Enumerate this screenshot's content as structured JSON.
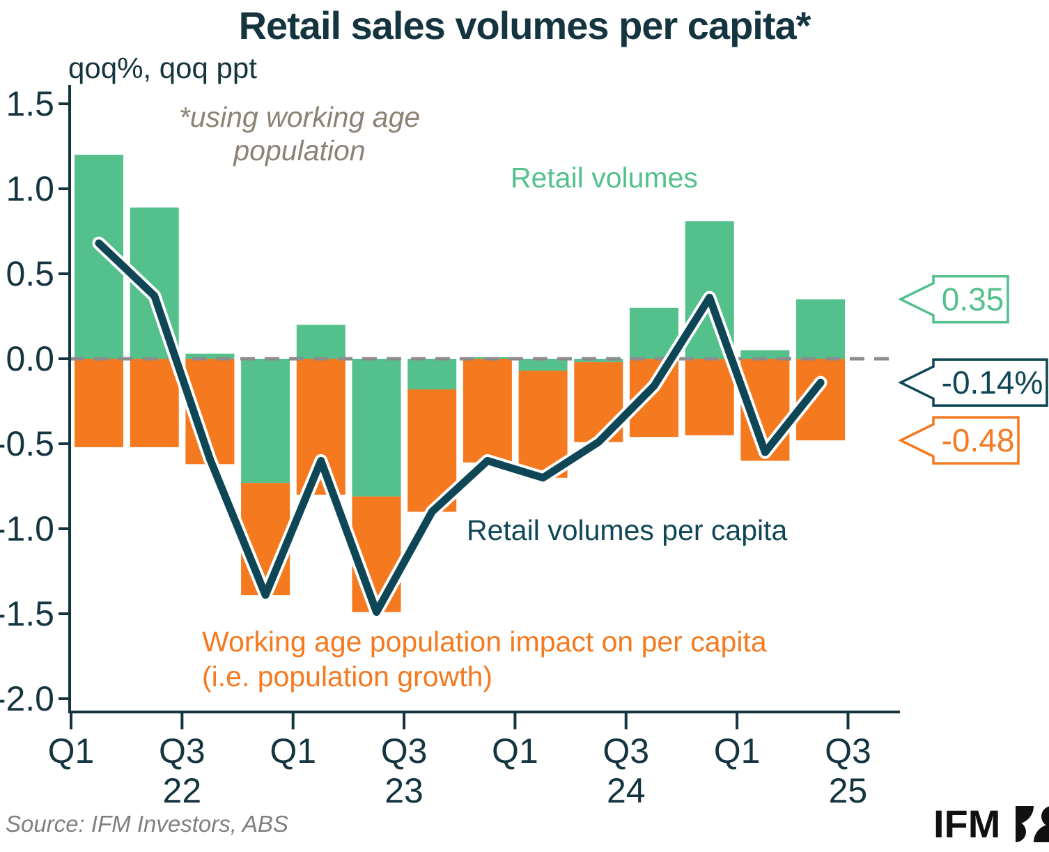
{
  "title": "Retail sales volumes per capita*",
  "axis_units_label": "qoq%, qoq ppt",
  "footnote": {
    "line1": "*using working age",
    "line2": "population"
  },
  "labels": {
    "retail_volumes": "Retail volumes",
    "retail_volumes_per_capita": "Retail volumes per capita",
    "population_impact_line1": "Working age population impact on per capita",
    "population_impact_line2": "(i.e. population growth)"
  },
  "source": "Source: IFM Investors, ABS",
  "logo": {
    "text": "IFM",
    "mark": "ifm-pinwheel-mark"
  },
  "colors": {
    "green": "#54C08C",
    "orange": "#F4791F",
    "teal": "#0E4656",
    "text_dark": "#14343F",
    "gray_dash": "#8C8C8C",
    "footnote_gray": "#8D8276",
    "source_gray": "#7F7F7F",
    "logo_black": "#111111"
  },
  "callouts": [
    {
      "label": "0.35",
      "value": 0.35,
      "color_key": "green"
    },
    {
      "label": "-0.14%",
      "value": -0.14,
      "color_key": "teal"
    },
    {
      "label": "-0.48",
      "value": -0.48,
      "color_key": "orange"
    }
  ],
  "chart_data": {
    "type": "bar",
    "subtype": "stacked contribution bars with overlaid line (line = green + orange)",
    "title": "Retail sales volumes per capita*",
    "ylabel": "qoq%, qoq ppt",
    "ylim": [
      -2.0,
      1.5
    ],
    "zero_line": "dashed gray",
    "grid": false,
    "categories": [
      "Q1 2022",
      "Q2 2022",
      "Q3 2022",
      "Q4 2022",
      "Q1 2023",
      "Q2 2023",
      "Q3 2023",
      "Q4 2023",
      "Q1 2024",
      "Q2 2024",
      "Q3 2024",
      "Q4 2024",
      "Q1 2025",
      "Q2 2025"
    ],
    "series": [
      {
        "name": "Retail volumes",
        "type": "bar",
        "color_key": "green",
        "values": [
          1.2,
          0.89,
          0.03,
          -0.73,
          0.2,
          -0.81,
          -0.18,
          0.01,
          -0.07,
          -0.02,
          0.3,
          0.81,
          0.05,
          0.35
        ]
      },
      {
        "name": "Working age population impact on per capita (i.e. population growth)",
        "type": "bar",
        "color_key": "orange",
        "values": [
          -0.52,
          -0.52,
          -0.62,
          -0.66,
          -0.8,
          -0.68,
          -0.72,
          -0.61,
          -0.63,
          -0.47,
          -0.46,
          -0.45,
          -0.6,
          -0.48
        ]
      },
      {
        "name": "Retail volumes per capita",
        "type": "line",
        "color_key": "teal",
        "values": [
          0.68,
          0.37,
          -0.59,
          -1.39,
          -0.6,
          -1.49,
          -0.9,
          -0.6,
          -0.7,
          -0.49,
          -0.16,
          0.36,
          -0.55,
          -0.14
        ]
      }
    ],
    "y_ticks": [
      1.5,
      1.0,
      0.5,
      0.0,
      -0.5,
      -1.0,
      -1.5,
      -2.0
    ],
    "y_tick_labels": [
      "1.5",
      "1.0",
      "0.5",
      "0.0",
      "-0.5",
      "-1.0",
      "-1.5",
      "-2.0"
    ],
    "x_tick_labels": [
      "Q1",
      "Q3",
      "Q1",
      "Q3",
      "Q1",
      "Q3",
      "Q1",
      "Q3"
    ],
    "x_year_labels": [
      "",
      "22",
      "",
      "23",
      "",
      "24",
      "",
      "25"
    ]
  }
}
